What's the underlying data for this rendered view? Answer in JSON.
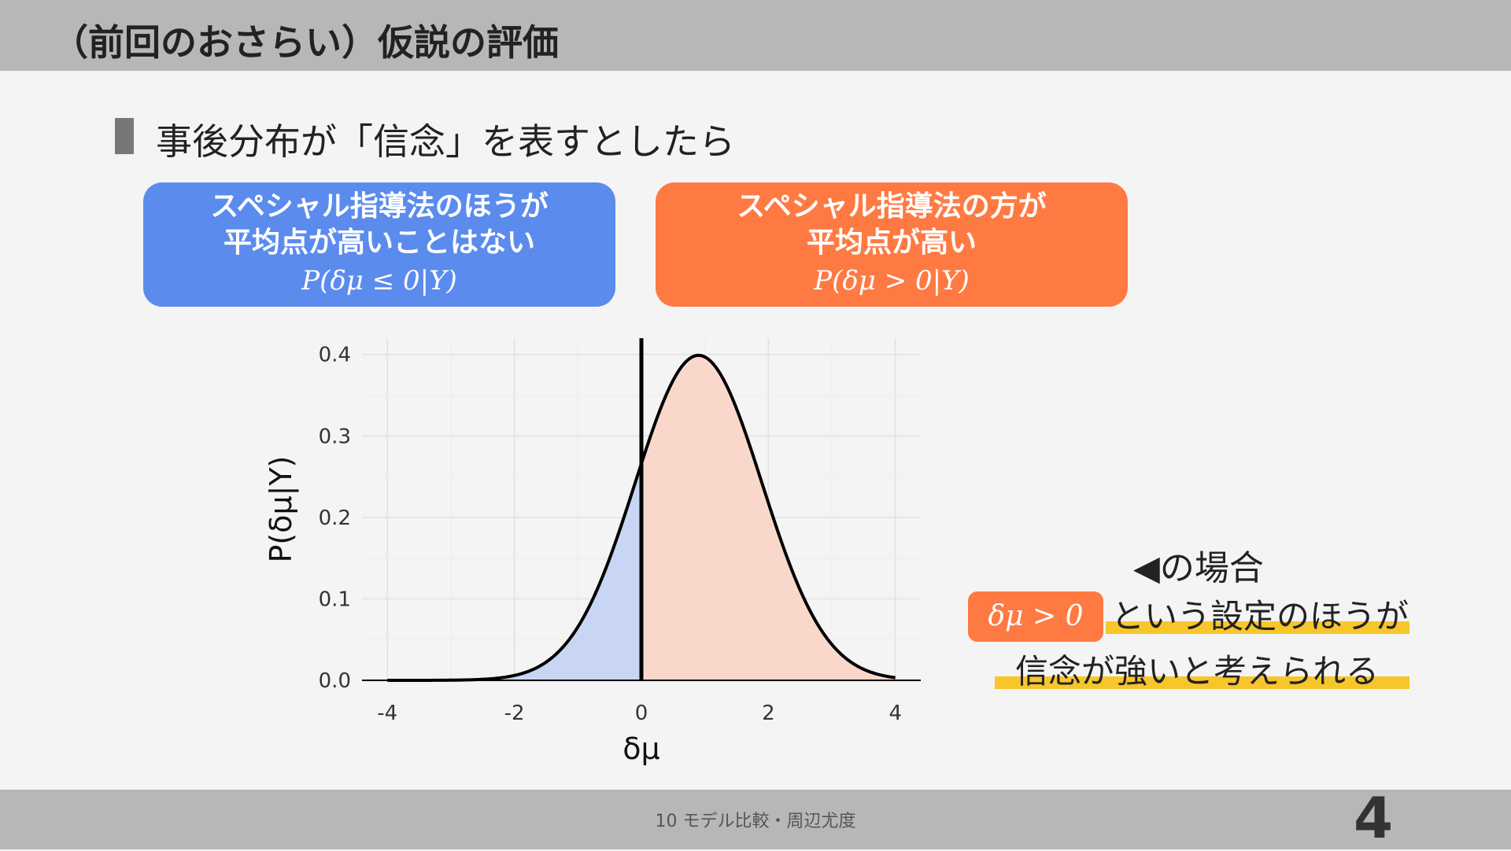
{
  "header": {
    "title": "（前回のおさらい）仮説の評価"
  },
  "section": {
    "title": "事後分布が「信念」を表すとしたら"
  },
  "boxes": {
    "blue": {
      "line1": "スペシャル指導法のほうが",
      "line2": "平均点が高いことはない",
      "formula": "P(δμ ≤ 0|Y)",
      "color": "#5b8bed"
    },
    "orange": {
      "line1": "スペシャル指導法の方が",
      "line2": "平均点が高い",
      "formula": "P(δμ > 0|Y)",
      "color": "#ff7a43"
    }
  },
  "chart_data": {
    "type": "area",
    "distribution": {
      "family": "normal",
      "mean": 0.9,
      "sd": 1.0
    },
    "xlabel": "δμ",
    "ylabel": "P(δμ|Y)",
    "xlim": [
      -4,
      4
    ],
    "ylim": [
      0,
      0.4
    ],
    "x_ticks": [
      "-4",
      "-2",
      "0",
      "2",
      "4"
    ],
    "y_ticks": [
      "0.0",
      "0.1",
      "0.2",
      "0.3",
      "0.4"
    ],
    "threshold": 0,
    "colors": {
      "left_fill": "#c8d6f4",
      "right_fill": "#f9d8cb",
      "curve": "#000000"
    }
  },
  "note": {
    "title": "◀の場合",
    "badge": "δμ > 0",
    "line1": "という設定のほうが",
    "line2": "信念が強いと考えられる",
    "highlight_color": "#f7c62a"
  },
  "footer": {
    "text": "10 モデル比較・周辺尤度",
    "page": "4"
  }
}
